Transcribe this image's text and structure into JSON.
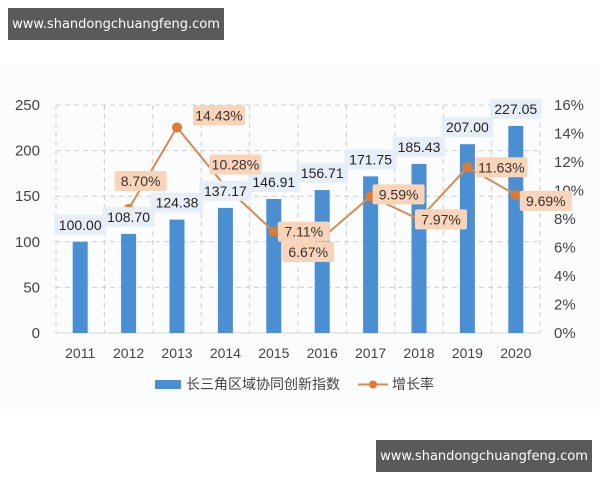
{
  "watermarks": {
    "top": "www.shandongchuangfeng.com",
    "bottom": "www.shandongchuangfeng.com"
  },
  "colors": {
    "bar": "#4a8fd4",
    "line": "#d98a4e",
    "marker": "#e07a2e",
    "bar_label_bg": "#e8eef8",
    "line_label_bg": "#f9d4b8",
    "grid": "#cfcfcf",
    "axis_text": "#444444"
  },
  "chart_data": {
    "type": "bar+line",
    "title": "",
    "categories": [
      "2011",
      "2012",
      "2013",
      "2014",
      "2015",
      "2016",
      "2017",
      "2018",
      "2019",
      "2020"
    ],
    "series": [
      {
        "name": "长三角区域协同创新指数",
        "type": "bar",
        "axis": "left",
        "values": [
          100.0,
          108.7,
          124.38,
          137.17,
          146.91,
          156.71,
          171.75,
          185.43,
          207.0,
          227.05
        ],
        "labels": [
          "100.00",
          "108.70",
          "124.38",
          "137.17",
          "146.91",
          "156.71",
          "171.75",
          "185.43",
          "207.00",
          "227.05"
        ]
      },
      {
        "name": "增长率",
        "type": "line",
        "axis": "right",
        "values": [
          null,
          8.7,
          14.43,
          10.28,
          7.11,
          6.67,
          9.59,
          7.97,
          11.63,
          9.69
        ],
        "labels": [
          null,
          "8.70%",
          "14.43%",
          "10.28%",
          "7.11%",
          "6.67%",
          "9.59%",
          "7.97%",
          "11.63%",
          "9.69%"
        ]
      }
    ],
    "left_axis": {
      "min": 0,
      "max": 250,
      "ticks": [
        "0",
        "50",
        "100",
        "150",
        "200",
        "250"
      ]
    },
    "right_axis": {
      "min": 0,
      "max": 16,
      "ticks": [
        "0%",
        "2%",
        "4%",
        "6%",
        "8%",
        "10%",
        "12%",
        "14%",
        "16%"
      ]
    },
    "grid": true,
    "legend_position": "bottom",
    "legend": [
      "长三角区域协同创新指数",
      "增长率"
    ]
  }
}
